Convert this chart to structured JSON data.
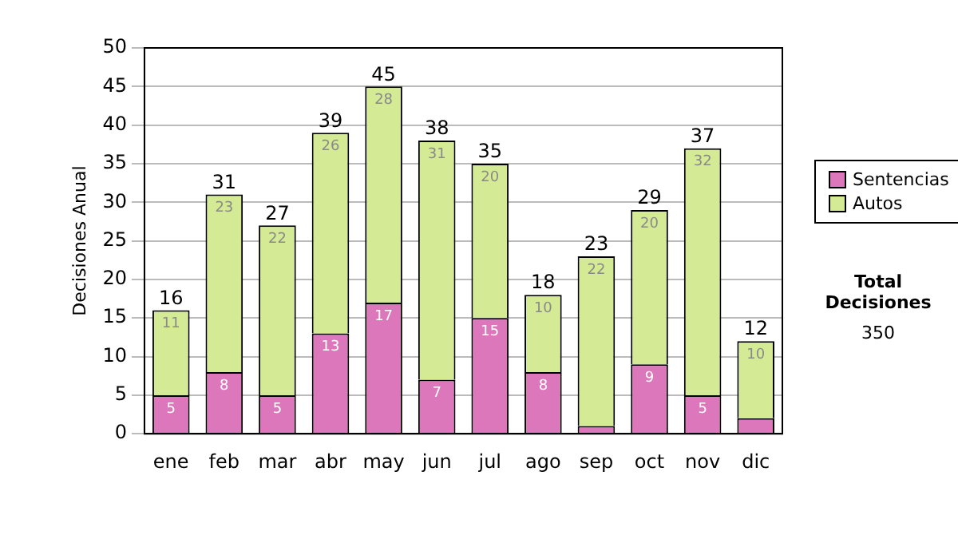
{
  "chart_data": {
    "type": "bar",
    "stacked": true,
    "ylabel": "Decisiones Anual",
    "categories": [
      "ene",
      "feb",
      "mar",
      "abr",
      "may",
      "jun",
      "jul",
      "ago",
      "sep",
      "oct",
      "nov",
      "dic"
    ],
    "series": [
      {
        "name": "Sentencias",
        "color": "#dd77bb",
        "values": [
          5,
          8,
          5,
          13,
          17,
          7,
          15,
          8,
          1,
          9,
          5,
          2
        ],
        "value_labels": [
          "5",
          "8",
          "5",
          "13",
          "17",
          "7",
          "15",
          "8",
          null,
          "9",
          "5",
          null
        ]
      },
      {
        "name": "Autos",
        "color": "#d4ea94",
        "values": [
          11,
          23,
          22,
          26,
          28,
          31,
          20,
          10,
          22,
          20,
          32,
          10
        ],
        "value_labels": [
          "11",
          "23",
          "22",
          "26",
          "28",
          "31",
          "20",
          "10",
          "22",
          "20",
          "32",
          "10"
        ]
      }
    ],
    "totals": [
      "16",
      "31",
      "27",
      "39",
      "45",
      "38",
      "35",
      "18",
      "23",
      "29",
      "37",
      "12"
    ],
    "ylim": [
      0,
      50
    ],
    "yticks": [
      0,
      5,
      10,
      15,
      20,
      25,
      30,
      35,
      40,
      45,
      50
    ],
    "grid": "y",
    "legend": "right",
    "annotations": [
      "Total Decisiones",
      "350"
    ]
  }
}
